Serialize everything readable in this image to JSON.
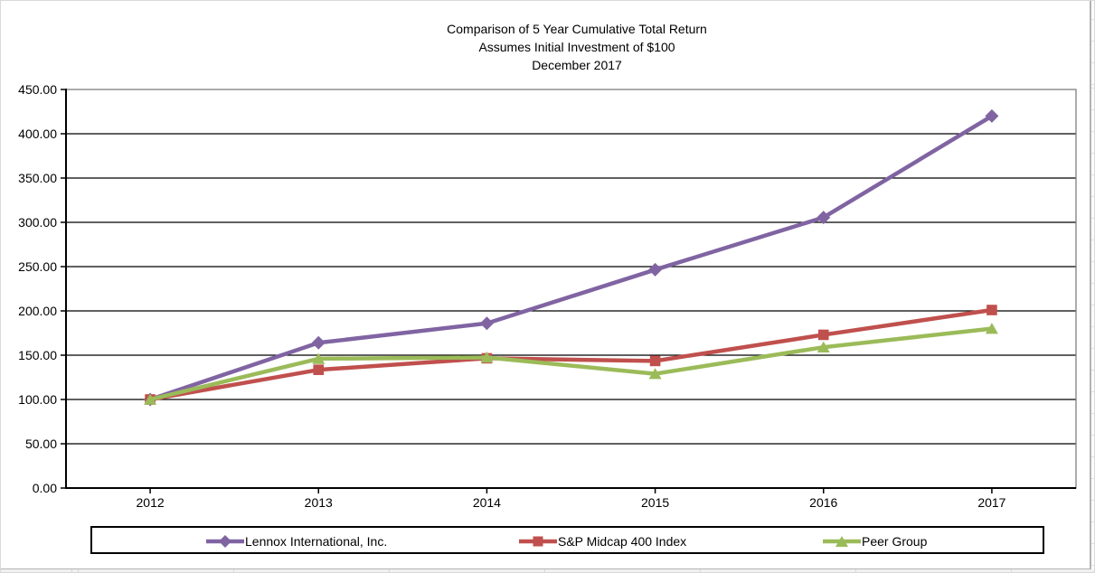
{
  "chart_data": {
    "type": "line",
    "title_lines": [
      "Comparison of 5 Year Cumulative Total Return",
      "Assumes Initial Investment of $100",
      "December 2017"
    ],
    "categories": [
      "2012",
      "2013",
      "2014",
      "2015",
      "2016",
      "2017"
    ],
    "series": [
      {
        "name": "Lennox International, Inc.",
        "color": "#8064A2",
        "marker": "diamond",
        "values": [
          100.0,
          164.0,
          186.0,
          246.5,
          305.5,
          420.0
        ]
      },
      {
        "name": "S&P Midcap 400 Index",
        "color": "#C0504D",
        "marker": "square",
        "values": [
          100.0,
          133.5,
          146.5,
          143.5,
          173.0,
          201.0
        ]
      },
      {
        "name": "Peer Group",
        "color": "#9BBB59",
        "marker": "triangle",
        "values": [
          100.0,
          146.0,
          147.5,
          129.0,
          159.0,
          180.0
        ]
      }
    ],
    "xlabel": "",
    "ylabel": "",
    "ylim": [
      0,
      450
    ],
    "y_tick_interval": 50,
    "y_tick_decimals": 2,
    "grid": "horizontal",
    "gridline_color": "#000000",
    "plot_border_color": "#808080",
    "axis_color": "#000000",
    "legend_position": "bottom"
  }
}
